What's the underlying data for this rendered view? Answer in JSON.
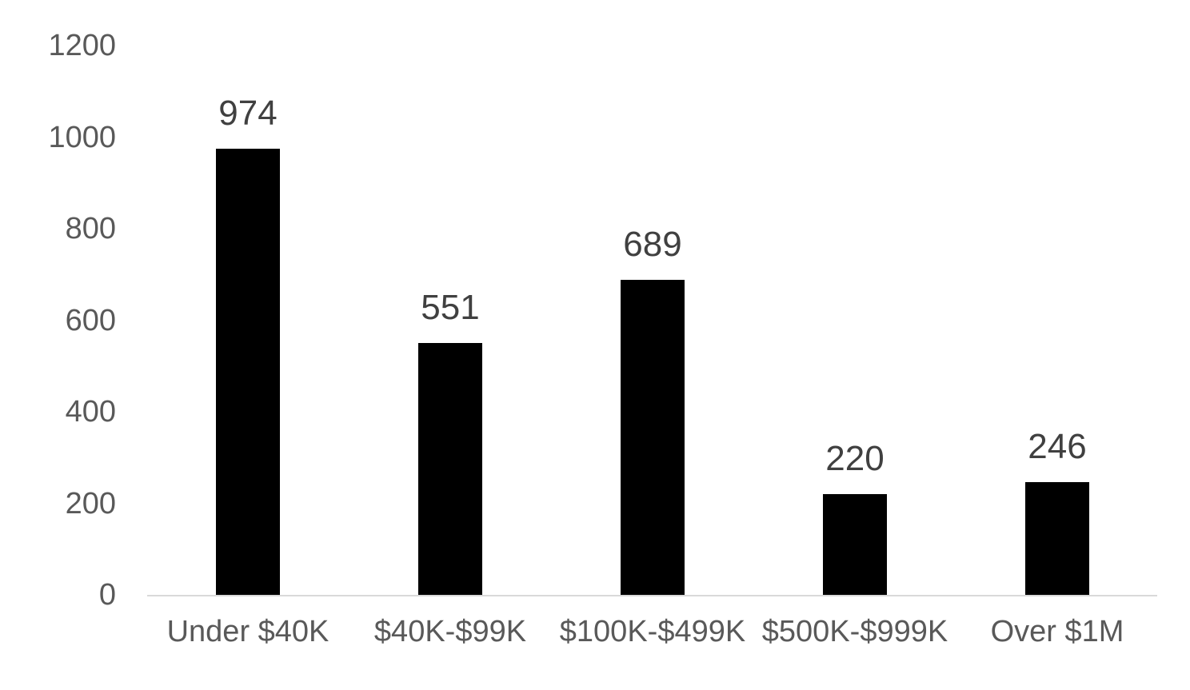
{
  "chart_data": {
    "type": "bar",
    "title": "",
    "xlabel": "",
    "ylabel": "",
    "categories": [
      "Under $40K",
      "$40K-$99K",
      "$100K-$499K",
      "$500K-$999K",
      "Over $1M"
    ],
    "values": [
      974,
      551,
      689,
      220,
      246
    ],
    "data_labels": [
      "974",
      "551",
      "689",
      "220",
      "246"
    ],
    "y_ticks": [
      0,
      200,
      400,
      600,
      800,
      1000,
      1200
    ],
    "ylim": [
      0,
      1200
    ],
    "grid": false,
    "legend": false,
    "colors": {
      "bar": "#000000",
      "data_label": "#404040",
      "tick_label": "#595959",
      "axis_line": "#d9d9d9",
      "background": "#ffffff"
    }
  }
}
